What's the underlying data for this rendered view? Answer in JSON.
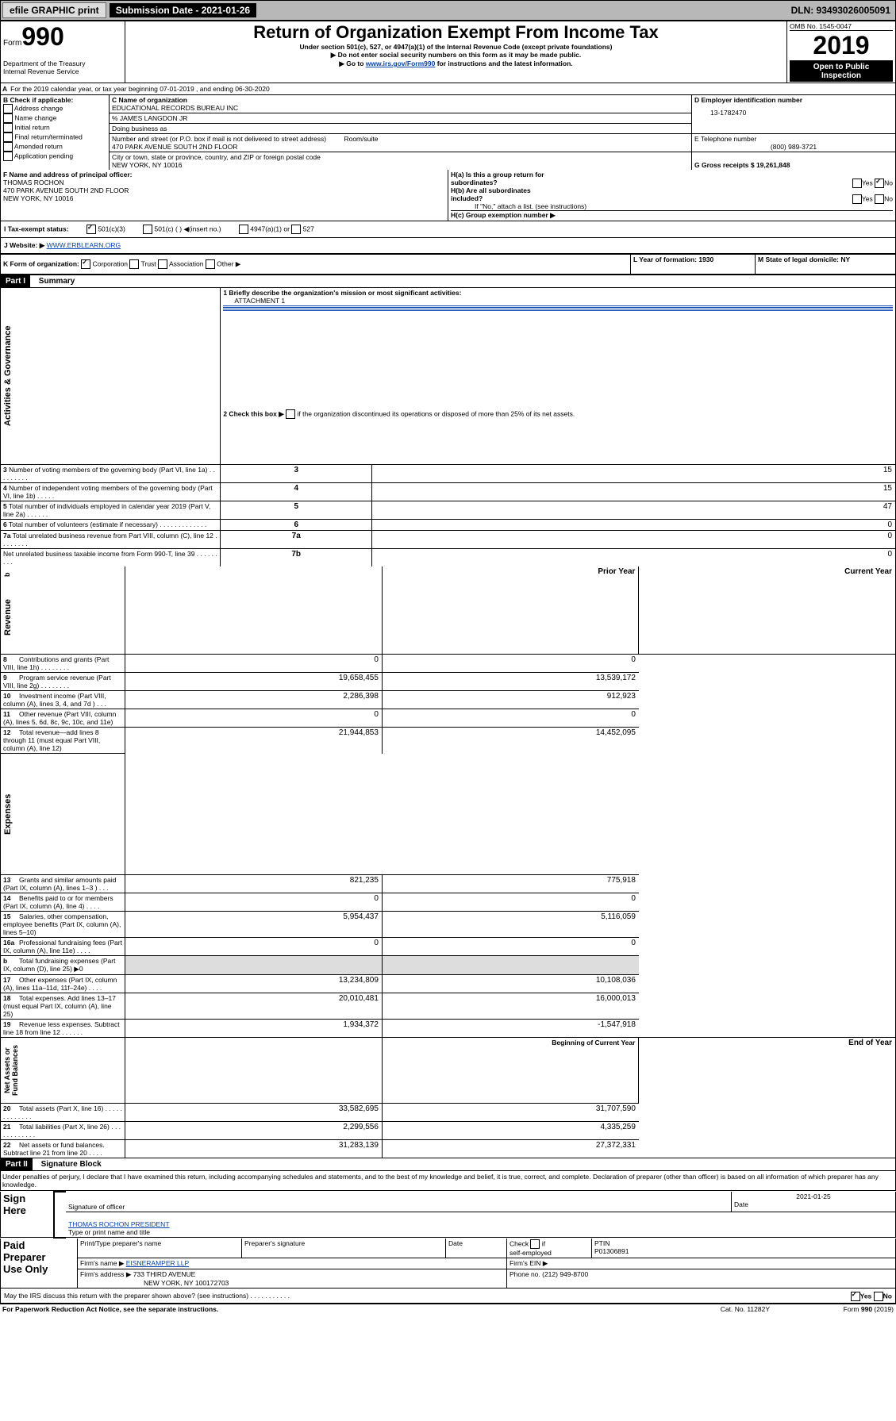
{
  "topbar": {
    "efile": "efile GRAPHIC print",
    "subdate_label": "Submission Date - 2021-01-26",
    "dln": "DLN: 93493026005091"
  },
  "header": {
    "form": "Form",
    "num": "990",
    "title": "Return of Organization Exempt From Income Tax",
    "subtitle": "Under section 501(c), 527, or 4947(a)(1) of the Internal Revenue Code (except private foundations)",
    "note1": "▶ Do not enter social security numbers on this form as it may be made public.",
    "note2": "▶ Go to ",
    "note2_link": "www.irs.gov/Form990",
    "note2_end": " for instructions and the latest information.",
    "dept": "Department of the Treasury\nInternal Revenue Service",
    "omb": "OMB No. 1545-0047",
    "year": "2019",
    "open": "Open to Public\nInspection"
  },
  "A": {
    "line": "For the 2019 calendar year, or tax year beginning 07-01-2019    , and ending 06-30-2020"
  },
  "B": {
    "label": "B Check if applicable:",
    "opts": [
      "Address change",
      "Name change",
      "Initial return",
      "Final return/terminated",
      "Amended return",
      "Application pending"
    ]
  },
  "C": {
    "name_label": "C Name of organization",
    "name": "EDUCATIONAL RECORDS BUREAU INC",
    "care": "% JAMES LANGDON JR",
    "dba_label": "Doing business as",
    "street_label": "Number and street (or P.O. box if mail is not delivered to street address)",
    "room_label": "Room/suite",
    "street": "470 PARK AVENUE SOUTH 2ND FLOOR",
    "city_label": "City or town, state or province, country, and ZIP or foreign postal code",
    "city": "NEW YORK, NY  10016"
  },
  "D": {
    "label": "D Employer identification number",
    "val": "13-1782470"
  },
  "E": {
    "label": "E Telephone number",
    "val": "(800) 989-3721"
  },
  "G": {
    "label": "G Gross receipts $ 19,261,848"
  },
  "F": {
    "label": "F  Name and address of principal officer:",
    "name": "THOMAS ROCHON",
    "addr1": "470 PARK AVENUE SOUTH 2ND FLOOR",
    "addr2": "NEW YORK, NY  10016"
  },
  "H": {
    "a": "H(a)  Is this a group return for\nsubordinates?",
    "b": "H(b)  Are all subordinates\nincluded?",
    "note": "If \"No,\" attach a list. (see instructions)",
    "c": "H(c)  Group exemption number ▶",
    "yes": "Yes",
    "no": "No"
  },
  "I": {
    "label": "I    Tax-exempt status:",
    "o1": "501(c)(3)",
    "o2": "501(c) (  ) ◀(insert no.)",
    "o3": "4947(a)(1) or",
    "o4": "527"
  },
  "J": {
    "label": "J    Website: ▶",
    "val": "WWW.ERBLEARN.ORG"
  },
  "K": {
    "label": "K Form of organization:",
    "o1": "Corporation",
    "o2": "Trust",
    "o3": "Association",
    "o4": "Other ▶"
  },
  "L": {
    "label": "L Year of formation: 1930"
  },
  "M": {
    "label": "M State of legal domicile: NY"
  },
  "part1": {
    "title": "Part I",
    "heading": "Summary",
    "q1": "1  Briefly describe the organization's mission or most significant activities:",
    "q1_val": "ATTACHMENT 1",
    "q2": "2    Check this box ▶",
    "q2_end": "if the organization discontinued its operations or disposed of more than 25% of its net assets.",
    "rows": [
      {
        "n": "3",
        "t": "Number of voting members of the governing body (Part VI, line 1a)   .    .    .    .    .    .    .    .    .",
        "c": "3",
        "v": "15"
      },
      {
        "n": "4",
        "t": "Number of independent voting members of the governing body (Part VI, line 1b)   .    .    .    .    .",
        "c": "4",
        "v": "15"
      },
      {
        "n": "5",
        "t": "Total number of individuals employed in calendar year 2019 (Part V, line 2a)   .    .    .    .    .    .",
        "c": "5",
        "v": "47"
      },
      {
        "n": "6",
        "t": "Total number of volunteers (estimate if necessary)   .    .    .    .    .    .    .    .    .    .    .    .    .",
        "c": "6",
        "v": "0"
      },
      {
        "n": "7a",
        "t": "Total unrelated business revenue from Part VIII, column (C), line 12   .    .    .    .    .    .    .    .",
        "c": "7a",
        "v": "0"
      },
      {
        "n": "  ",
        "t": "Net unrelated business taxable income from Form 990-T, line 39   .    .    .    .    .    .    .    .    .",
        "c": "7b",
        "v": "0"
      }
    ],
    "prior": "Prior Year",
    "current": "Current Year",
    "rev": [
      {
        "n": "8",
        "t": "Contributions and grants (Part VIII, line 1h)   .    .    .    .    .    .    .    .",
        "p": "0",
        "c": "0"
      },
      {
        "n": "9",
        "t": "Program service revenue (Part VIII, line 2g)   .    .    .    .    .    .    .    .",
        "p": "19,658,455",
        "c": "13,539,172"
      },
      {
        "n": "10",
        "t": "Investment income (Part VIII, column (A), lines 3, 4, and 7d )   .    .    .",
        "p": "2,286,398",
        "c": "912,923"
      },
      {
        "n": "11",
        "t": "Other revenue (Part VIII, column (A), lines 5, 6d, 8c, 9c, 10c, and 11e)",
        "p": "0",
        "c": "0"
      },
      {
        "n": "12",
        "t": "Total revenue—add lines 8 through 11 (must equal Part VIII, column (A), line 12)",
        "p": "21,944,853",
        "c": "14,452,095"
      }
    ],
    "exp": [
      {
        "n": "13",
        "t": "Grants and similar amounts paid (Part IX, column (A), lines 1–3 )   .    .    .",
        "p": "821,235",
        "c": "775,918"
      },
      {
        "n": "14",
        "t": "Benefits paid to or for members (Part IX, column (A), line 4)   .    .    .    .",
        "p": "0",
        "c": "0"
      },
      {
        "n": "15",
        "t": "Salaries, other compensation, employee benefits (Part IX, column (A), lines 5–10)",
        "p": "5,954,437",
        "c": "5,116,059"
      },
      {
        "n": "16a",
        "t": "Professional fundraising fees (Part IX, column (A), line 11e)   .    .    .    .",
        "p": "0",
        "c": "0"
      },
      {
        "n": "b",
        "t": "Total fundraising expenses (Part IX, column (D), line 25) ▶0",
        "p": "",
        "c": "",
        "shaded": true
      },
      {
        "n": "17",
        "t": "Other expenses (Part IX, column (A), lines 11a–11d, 11f–24e)   .    .    .    .",
        "p": "13,234,809",
        "c": "10,108,036"
      },
      {
        "n": "18",
        "t": "Total expenses. Add lines 13–17 (must equal Part IX, column (A), line 25)",
        "p": "20,010,481",
        "c": "16,000,013"
      },
      {
        "n": "19",
        "t": "Revenue less expenses. Subtract line 18 from line 12   .    .    .    .    .    .",
        "p": "1,934,372",
        "c": "-1,547,918"
      }
    ],
    "begin": "Beginning of Current Year",
    "end": "End of Year",
    "net": [
      {
        "n": "20",
        "t": "Total assets (Part X, line 16)   .    .    .    .    .    .    .    .    .    .    .    .    .",
        "p": "33,582,695",
        "c": "31,707,590"
      },
      {
        "n": "21",
        "t": "Total liabilities (Part X, line 26)   .    .    .    .    .    .    .    .    .    .    .    .",
        "p": "2,299,556",
        "c": "4,335,259"
      },
      {
        "n": "22",
        "t": "Net assets or fund balances. Subtract line 21 from line 20   .    .    .    .",
        "p": "31,283,139",
        "c": "27,372,331"
      }
    ],
    "vert": {
      "gov": "Activities & Governance",
      "rev": "Revenue",
      "exp": "Expenses",
      "net": "Net Assets or\nFund Balances"
    }
  },
  "part2": {
    "title": "Part II",
    "heading": "Signature Block",
    "perjury": "Under penalties of perjury, I declare that I have examined this return, including accompanying schedules and statements, and to the best of my knowledge and belief, it is true, correct, and complete. Declaration of preparer (other than officer) is based on all information of which preparer has any knowledge.",
    "sign_here": "Sign\nHere",
    "sig_officer": "Signature of officer",
    "date": "Date",
    "date_val": "2021-01-25",
    "officer_name": "THOMAS ROCHON  PRESIDENT",
    "type_name": "Type or print name and title",
    "paid": "Paid\nPreparer\nUse Only",
    "prep_name": "Print/Type preparer's name",
    "prep_sig": "Preparer's signature",
    "prep_date": "Date",
    "check_self": "Check",
    "if": "if",
    "self_emp": "self-employed",
    "ptin": "PTIN",
    "ptin_val": "P01306891",
    "firm_name": "Firm's name     ▶",
    "firm_val": "EISNERAMPER LLP",
    "firm_ein": "Firm's EIN ▶",
    "firm_addr": "Firm's address ▶",
    "addr_val1": "733 THIRD AVENUE",
    "addr_val2": "NEW YORK, NY  100172703",
    "firm_phone": "Phone no. (212) 949-8700",
    "discuss": "May the IRS discuss this return with the preparer shown above? (see instructions)   .    .    .    .    .    .    .    .    .    .    .",
    "d_yes": "Yes",
    "d_no": "No",
    "footer_l": "For Paperwork Reduction Act Notice, see the separate instructions.",
    "footer_c": "Cat. No. 11282Y",
    "footer_r": "Form 990 (2019)"
  }
}
